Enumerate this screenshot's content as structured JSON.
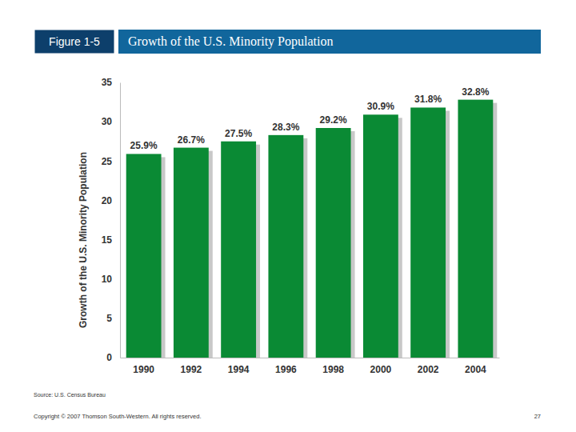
{
  "chart_data": {
    "type": "bar",
    "figure_label": "Figure 1-5",
    "title": "Growth of the U.S. Minority Population",
    "y_label": "Growth of the U.S. Minority Population",
    "categories": [
      "1990",
      "1992",
      "1994",
      "1996",
      "1998",
      "2000",
      "2002",
      "2004"
    ],
    "values": [
      25.9,
      26.7,
      27.5,
      28.3,
      29.2,
      30.9,
      31.8,
      32.8
    ],
    "value_labels": [
      "25.9%",
      "26.7%",
      "27.5%",
      "28.3%",
      "29.2%",
      "30.9%",
      "31.8%",
      "32.8%"
    ],
    "color": "#0a8a34",
    "ylim": [
      0,
      35
    ],
    "yticks": [
      0,
      5,
      10,
      15,
      20,
      25,
      30,
      35
    ],
    "grid": false,
    "data_labels": true,
    "source": "Source: U.S. Census Bureau",
    "copyright": "Copyright © 2007 Thomson South-Western. All rights reserved.",
    "page_number": "27"
  }
}
